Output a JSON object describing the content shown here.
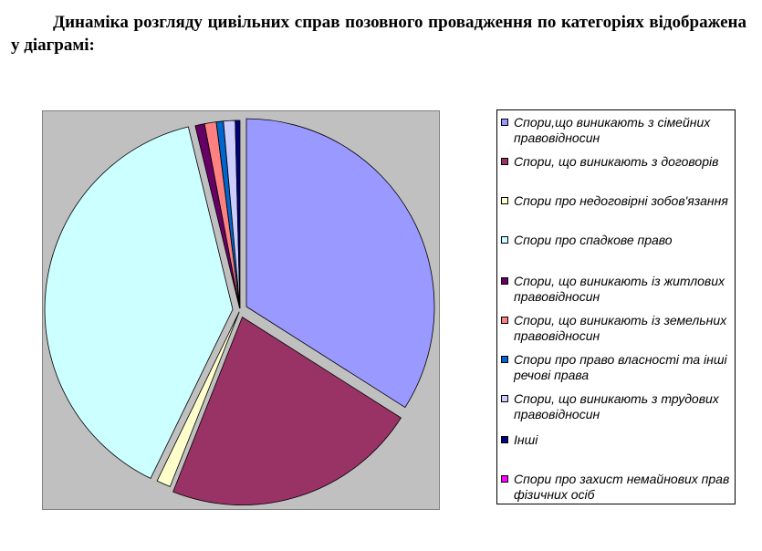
{
  "title": "Динаміка розгляду цивільних справ позовного провадження по категоріях відображена у діаграмі:",
  "chart_data": {
    "type": "pie",
    "title": "",
    "legend_position": "right",
    "series": [
      {
        "name": "Спори,що виникають з сімейних правовідносин",
        "value": 34,
        "color": "#9999ff",
        "exploded": true
      },
      {
        "name": "Спори, що виникають з договорів",
        "value": 22,
        "color": "#993366",
        "exploded": true
      },
      {
        "name": "Спори про недоговірні зобов'язання",
        "value": 1.2,
        "color": "#ffffcc",
        "exploded": false
      },
      {
        "name": "Спори про спадкове право",
        "value": 39,
        "color": "#ccffff",
        "exploded": true
      },
      {
        "name": "Спори, що виникають із житлових правовідносин",
        "value": 0.8,
        "color": "#660066",
        "exploded": false
      },
      {
        "name": "Спори, що виникають із земельних правовідносин",
        "value": 1.0,
        "color": "#ff8080",
        "exploded": false
      },
      {
        "name": "Спори про право власності та інші речові права",
        "value": 0.6,
        "color": "#0066cc",
        "exploded": false
      },
      {
        "name": "Спори, що виникають з трудових правовідносин",
        "value": 1.0,
        "color": "#ccccff",
        "exploded": false
      },
      {
        "name": "Інші",
        "value": 0.4,
        "color": "#000080",
        "exploded": false
      },
      {
        "name": "Спори про захист немайнових прав фізичних осіб",
        "value": 0,
        "color": "#ff00ff",
        "exploded": false
      }
    ]
  }
}
